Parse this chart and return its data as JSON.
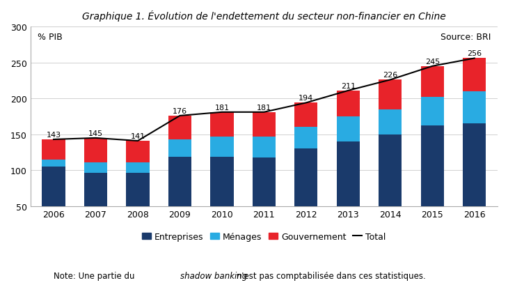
{
  "title": "Graphique 1. Évolution de l'endettement du secteur non-financier en Chine",
  "years": [
    2006,
    2007,
    2008,
    2009,
    2010,
    2011,
    2012,
    2013,
    2014,
    2015,
    2016
  ],
  "totals": [
    143,
    145,
    141,
    176,
    181,
    181,
    194,
    211,
    226,
    245,
    256
  ],
  "entreprises": [
    105,
    96,
    96,
    119,
    119,
    118,
    130,
    140,
    150,
    162,
    165
  ],
  "menages": [
    10,
    15,
    15,
    24,
    28,
    29,
    30,
    35,
    35,
    40,
    45
  ],
  "color_entreprises": "#1a3a6b",
  "color_menages": "#29abe2",
  "color_gouvernement": "#e8232a",
  "color_total_line": "#000000",
  "ylim": [
    50,
    300
  ],
  "yticks": [
    50,
    100,
    150,
    200,
    250,
    300
  ],
  "ylabel_text": "% PIB",
  "source_text": "Source: BRI",
  "note_normal": "Note: Une partie du ",
  "note_italic": "shadow banking",
  "note_end": " n'est pas comptabilisée dans ces statistiques.",
  "legend_labels": [
    "Entreprises",
    "Ménages",
    "Gouvernement",
    "Total"
  ],
  "background_color": "#ffffff",
  "grid_color": "#d0d0d0"
}
